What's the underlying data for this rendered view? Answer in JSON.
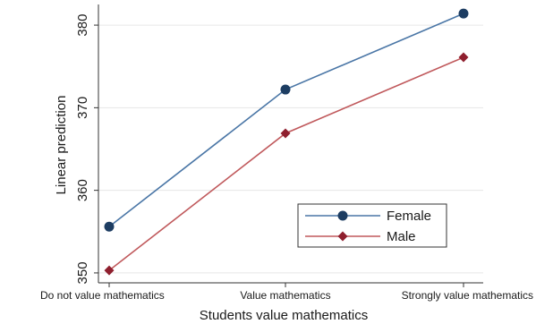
{
  "chart_data": {
    "type": "line",
    "title": "",
    "xlabel": "Students value mathematics",
    "ylabel": "Linear prediction",
    "categories": [
      "Do not value mathematics",
      "Value mathematics",
      "Strongly value mathematics"
    ],
    "yticks": [
      350,
      360,
      370,
      380
    ],
    "ylim": [
      348.8,
      382.5
    ],
    "grid": true,
    "legend_position": "bottom-right",
    "series": [
      {
        "name": "Female",
        "values": [
          355.6,
          372.2,
          381.4
        ],
        "color": "#4a76a6",
        "marker_color": "#1d3d62",
        "marker": "circle"
      },
      {
        "name": "Male",
        "values": [
          350.3,
          366.9,
          376.1
        ],
        "color": "#c0595c",
        "marker_color": "#8f1f2e",
        "marker": "diamond"
      }
    ]
  }
}
